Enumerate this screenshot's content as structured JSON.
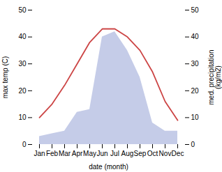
{
  "chart_data": {
    "type": "line",
    "xlabel": "date (month)",
    "ylabel": "max temp (C)",
    "y2label": "med. precipitation\n(kg/m2)",
    "categories": [
      "Jan",
      "Feb",
      "Mar",
      "Apr",
      "May",
      "Jun",
      "Jul",
      "Aug",
      "Sep",
      "Oct",
      "Nov",
      "Dec"
    ],
    "series": [
      {
        "type": "area",
        "axis": "y2",
        "color": "#c5cce8",
        "values": [
          3,
          4,
          5,
          12,
          13,
          40,
          42,
          35,
          25,
          8,
          5,
          5
        ]
      },
      {
        "type": "line",
        "color": "#cc4444",
        "values": [
          10,
          15,
          22,
          30,
          38,
          43,
          43,
          40,
          35,
          27,
          16,
          9
        ]
      }
    ],
    "ylim": [
      0,
      50
    ],
    "yticks": [
      0,
      10,
      20,
      30,
      40,
      50
    ],
    "y2lim": [
      0,
      50
    ],
    "y2ticks": [
      0,
      10,
      20,
      30,
      40,
      50
    ],
    "grid": false
  }
}
